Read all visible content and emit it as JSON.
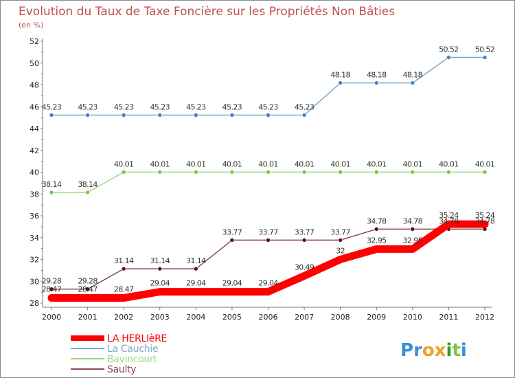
{
  "chart_data": {
    "type": "line",
    "title": "Evolution du Taux de Taxe Foncière sur les Propriétés Non Bâties",
    "subtitle": "(en %)",
    "x": [
      "2000",
      "2001",
      "2002",
      "2003",
      "2004",
      "2005",
      "2006",
      "2007",
      "2008",
      "2009",
      "2010",
      "2011",
      "2012"
    ],
    "ylim": [
      28,
      52
    ],
    "yticks": [
      "28",
      "30",
      "32",
      "34",
      "36",
      "38",
      "40",
      "42",
      "44",
      "46",
      "48",
      "50",
      "52"
    ],
    "grid": false,
    "legend_position": "bottom-left",
    "series": [
      {
        "name": "La Cauchie",
        "color": "#7fa8cc",
        "marker": "#3c82c4",
        "values": [
          45.23,
          45.23,
          45.23,
          45.23,
          45.23,
          45.23,
          45.23,
          45.23,
          48.18,
          48.18,
          48.18,
          50.52,
          50.52
        ],
        "labels": [
          "45.23",
          "45.23",
          "45.23",
          "45.23",
          "45.23",
          "45.23",
          "45.23",
          "45.23",
          "48.18",
          "48.18",
          "48.18",
          "50.52",
          "50.52"
        ]
      },
      {
        "name": "Bavincourt",
        "color": "#9fd880",
        "marker": "#7cc840",
        "values": [
          38.14,
          38.14,
          40.01,
          40.01,
          40.01,
          40.01,
          40.01,
          40.01,
          40.01,
          40.01,
          40.01,
          40.01,
          40.01
        ],
        "labels": [
          "38.14",
          "38.14",
          "40.01",
          "40.01",
          "40.01",
          "40.01",
          "40.01",
          "40.01",
          "40.01",
          "40.01",
          "40.01",
          "40.01",
          "40.01"
        ]
      },
      {
        "name": "Saulty",
        "color": "#8a4a4a",
        "marker": "#5a1010",
        "values": [
          29.28,
          29.28,
          31.14,
          31.14,
          31.14,
          33.77,
          33.77,
          33.77,
          33.77,
          34.78,
          34.78,
          34.78,
          34.78
        ],
        "labels": [
          "29.28",
          "29.28",
          "31.14",
          "31.14",
          "31.14",
          "33.77",
          "33.77",
          "33.77",
          "33.77",
          "34.78",
          "34.78",
          "34.78",
          "34.78"
        ]
      },
      {
        "name": "LA HERLIèRE",
        "color": "#ff0000",
        "marker": "#ff0000",
        "bold": true,
        "values": [
          28.47,
          28.47,
          28.47,
          29.04,
          29.04,
          29.04,
          29.04,
          30.49,
          32,
          32.95,
          32.95,
          35.24,
          35.24
        ],
        "labels": [
          "28.47",
          "28.47",
          "28.47",
          "29.04",
          "29.04",
          "29.04",
          "29.04",
          "30.49",
          "32",
          "32.95",
          "32.95",
          "35.24",
          "35.24"
        ]
      }
    ],
    "legend": [
      {
        "name": "LA HERLIèRE",
        "color": "#ff0000"
      },
      {
        "name": "La Cauchie",
        "color": "#7fa8cc"
      },
      {
        "name": "Bavincourt",
        "color": "#9fd880"
      },
      {
        "name": "Saulty",
        "color": "#8a4a4a"
      }
    ]
  },
  "brand": {
    "logo_letters": [
      {
        "ch": "P",
        "color": "#3a8fd8"
      },
      {
        "ch": "r",
        "color": "#3a8fd8"
      },
      {
        "ch": "o",
        "color": "#f0a020"
      },
      {
        "ch": "x",
        "color": "#f0a020"
      },
      {
        "ch": "i",
        "color": "#2a9f2a"
      },
      {
        "ch": "t",
        "color": "#7cc840"
      },
      {
        "ch": "i",
        "color": "#3a8fd8"
      }
    ]
  }
}
